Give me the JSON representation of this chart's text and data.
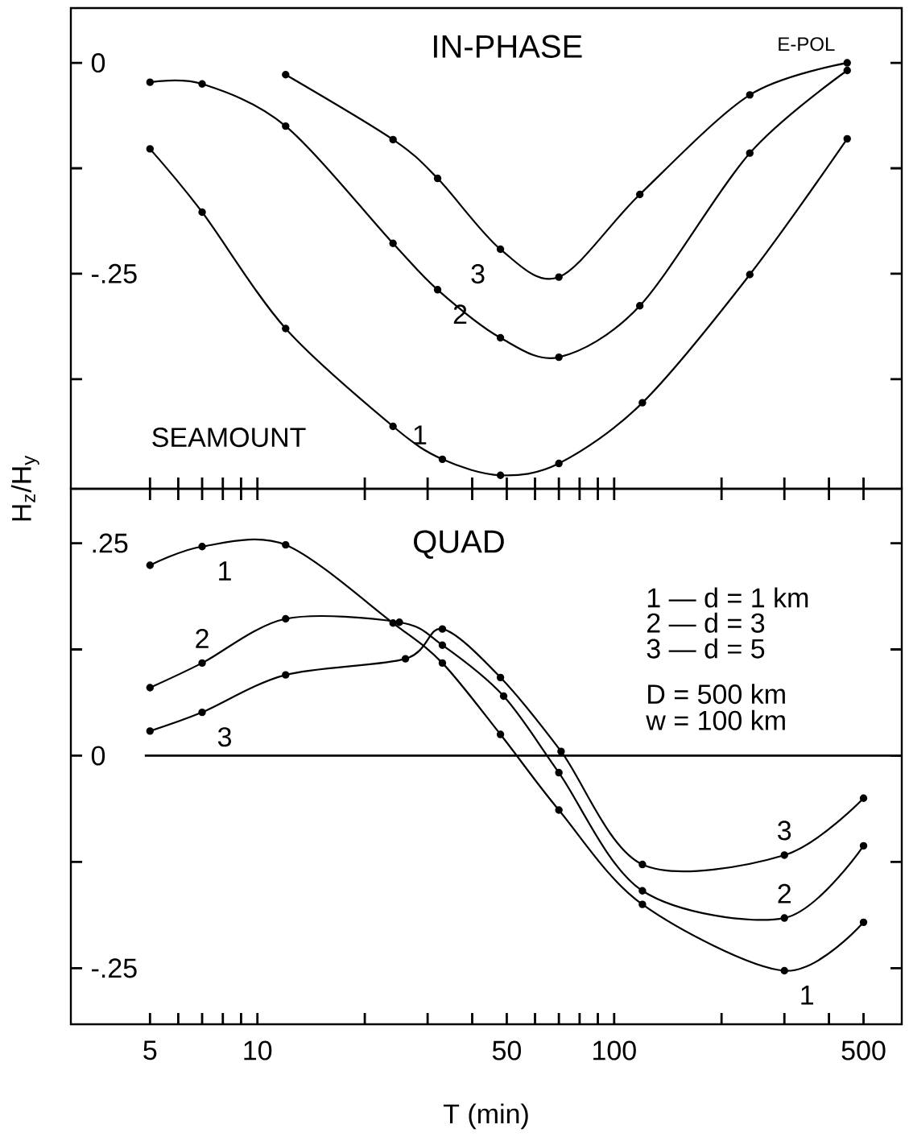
{
  "chart_data": [
    {
      "type": "line",
      "title": "IN-PHASE",
      "ylabel": "H$_{z}$/H$_{y}$",
      "annotations": [
        "E-POL",
        "SEAMOUNT"
      ],
      "log": "x",
      "xlim": [
        3,
        640
      ],
      "ylim": [
        -0.505,
        0.065
      ],
      "xticks": [
        5,
        {
          "value": 6,
          "label": null
        },
        {
          "value": 7,
          "label": null
        },
        {
          "value": 8,
          "label": null
        },
        {
          "value": 9,
          "label": null
        },
        10,
        {
          "value": 20,
          "label": null
        },
        {
          "value": 30,
          "label": null
        },
        {
          "value": 40,
          "label": null
        },
        50,
        {
          "value": 60,
          "label": null
        },
        {
          "value": 70,
          "label": null
        },
        {
          "value": 80,
          "label": null
        },
        {
          "value": 90,
          "label": null
        },
        100,
        {
          "value": 200,
          "label": null
        },
        {
          "value": 300,
          "label": null
        },
        {
          "value": 400,
          "label": null
        },
        500
      ],
      "yticks": [
        {
          "value": 0,
          "label": "0"
        },
        {
          "value": -0.125,
          "label": null
        },
        {
          "value": -0.25,
          "label": "-.25"
        },
        {
          "value": -0.375,
          "label": null
        }
      ],
      "tick_labels": "y",
      "marker": "circle",
      "line_style": "solid",
      "series": [
        {
          "name": "1",
          "color": "#000000",
          "x": [
            5,
            7,
            12,
            24,
            33,
            48,
            70,
            120,
            240,
            450
          ],
          "values": [
            -0.102,
            -0.177,
            -0.315,
            -0.431,
            -0.47,
            -0.489,
            -0.475,
            -0.403,
            -0.251,
            -0.09
          ]
        },
        {
          "name": "2",
          "color": "#000000",
          "x": [
            5,
            7,
            12,
            24,
            32,
            48,
            70,
            118,
            240,
            450
          ],
          "values": [
            -0.023,
            -0.025,
            -0.075,
            -0.214,
            -0.269,
            -0.326,
            -0.349,
            -0.288,
            -0.107,
            -0.009
          ]
        },
        {
          "name": "3",
          "color": "#000000",
          "x": [
            12,
            24,
            32,
            48,
            70,
            118,
            240,
            450
          ],
          "values": [
            -0.014,
            -0.091,
            -0.137,
            -0.221,
            -0.254,
            -0.156,
            -0.038,
            0.0
          ]
        }
      ]
    },
    {
      "type": "line",
      "title": "QUAD",
      "xlabel": "T (min)",
      "annotations": [
        "1 — d = 1 km",
        "2 — d = 3",
        "3 — d = 5",
        "D = 500 km",
        "w = 100 km"
      ],
      "log": "x",
      "xlim": [
        3,
        640
      ],
      "ylim": [
        -0.316,
        0.314
      ],
      "xticks": [
        5,
        {
          "value": 6,
          "label": null
        },
        {
          "value": 7,
          "label": null
        },
        {
          "value": 8,
          "label": null
        },
        {
          "value": 9,
          "label": null
        },
        10,
        {
          "value": 20,
          "label": null
        },
        {
          "value": 30,
          "label": null
        },
        {
          "value": 40,
          "label": null
        },
        50,
        {
          "value": 60,
          "label": null
        },
        {
          "value": 70,
          "label": null
        },
        {
          "value": 80,
          "label": null
        },
        {
          "value": 90,
          "label": null
        },
        100,
        {
          "value": 200,
          "label": null
        },
        {
          "value": 300,
          "label": null
        },
        {
          "value": 400,
          "label": null
        },
        500
      ],
      "yticks": [
        {
          "value": 0.25,
          "label": ".25"
        },
        {
          "value": 0.125,
          "label": null
        },
        0,
        {
          "value": -0.125,
          "label": null
        },
        {
          "value": -0.25,
          "label": "-.25"
        }
      ],
      "ref_lines": [
        {
          "axis": "y",
          "value": 0,
          "color": "#000000"
        }
      ],
      "marker": "circle",
      "line_style": "solid",
      "series": [
        {
          "name": "1",
          "color": "#000000",
          "x": [
            5,
            7,
            12,
            24,
            33,
            48,
            70,
            120,
            300,
            500
          ],
          "values": [
            0.224,
            0.246,
            0.248,
            0.156,
            0.109,
            0.025,
            -0.064,
            -0.175,
            -0.253,
            -0.196
          ]
        },
        {
          "name": "2",
          "color": "#000000",
          "x": [
            5,
            7,
            12,
            25,
            33,
            49,
            70,
            120,
            300,
            500
          ],
          "values": [
            0.08,
            0.109,
            0.161,
            0.157,
            0.13,
            0.07,
            -0.02,
            -0.159,
            -0.191,
            -0.106
          ]
        },
        {
          "name": "3",
          "color": "#000000",
          "x": [
            5,
            7,
            12,
            26,
            33,
            48,
            71,
            120,
            300,
            500
          ],
          "values": [
            0.029,
            0.051,
            0.095,
            0.114,
            0.149,
            0.092,
            0.005,
            -0.128,
            -0.117,
            -0.05
          ]
        }
      ]
    }
  ]
}
